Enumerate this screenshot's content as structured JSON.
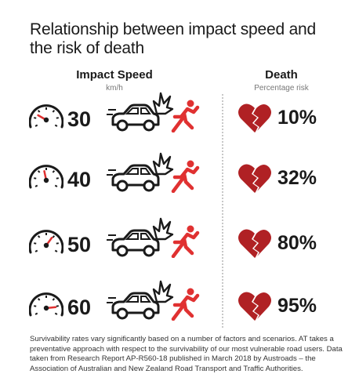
{
  "title": "Relationship between impact speed and the risk of death",
  "headers": {
    "speed": {
      "label": "Impact Speed",
      "unit": "km/h"
    },
    "death": {
      "label": "Death",
      "sub": "Percentage risk"
    }
  },
  "rows": [
    {
      "speed": "30",
      "risk": "10%",
      "risk_value": 10,
      "gauge_level": 0.25
    },
    {
      "speed": "40",
      "risk": "32%",
      "risk_value": 32,
      "gauge_level": 0.45
    },
    {
      "speed": "50",
      "risk": "80%",
      "risk_value": 80,
      "gauge_level": 0.65
    },
    {
      "speed": "60",
      "risk": "95%",
      "risk_value": 95,
      "gauge_level": 0.85
    }
  ],
  "icons": {
    "gauge": "speedometer-icon",
    "car": "car-icon",
    "crash": "impact-burst-icon",
    "pedestrian": "pedestrian-icon",
    "heart": "broken-heart-icon"
  },
  "colors": {
    "accent": "#e03131",
    "heart": "#b02124",
    "text": "#1a1a1a"
  },
  "footer": "Survivability rates vary significantly based on a number of factors and scenarios. AT takes a preventative approach with respect to the survivability of our most vulnerable road users. Data taken from Research Report AP-R560-18 published in March 2018 by Austroads – the Association of Australian and New Zealand Road Transport and Traffic Authorities."
}
